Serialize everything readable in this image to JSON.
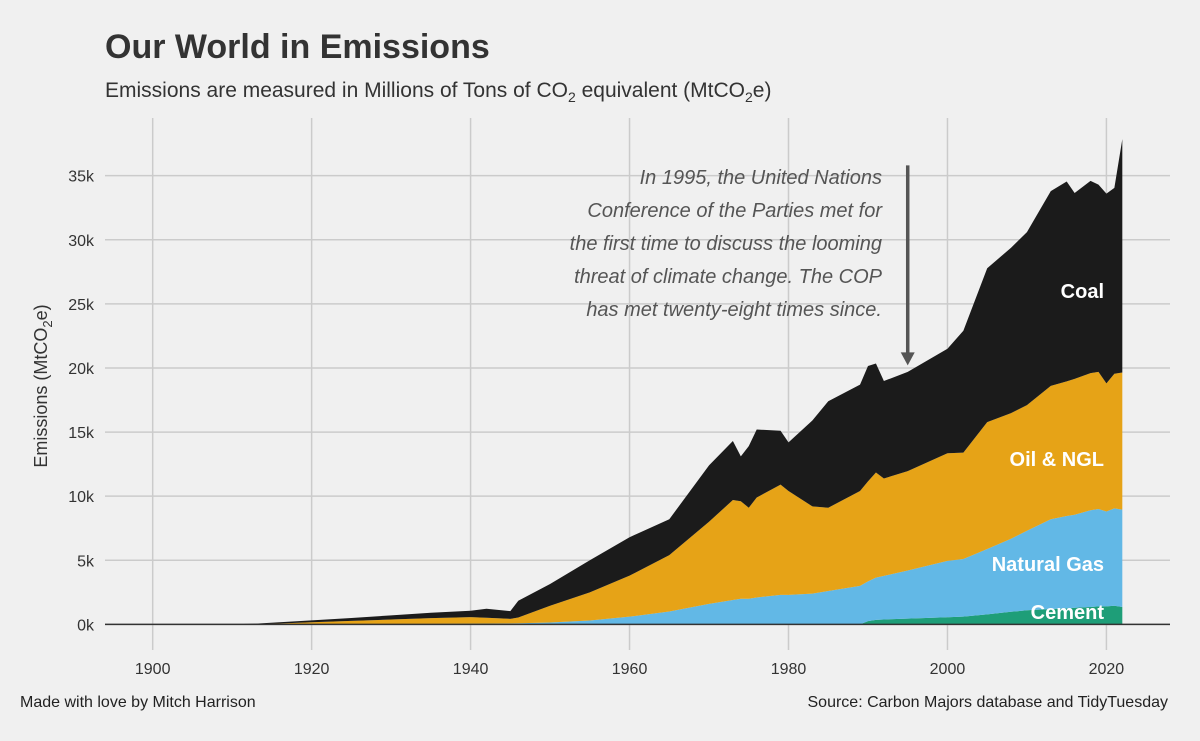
{
  "title": "Our World in Emissions",
  "subtitle": {
    "prefix": "Emissions are measured in Millions of Tons of CO",
    "sub1": "2",
    "middle": " equivalent (MtCO",
    "sub2": "2",
    "suffix": "e)"
  },
  "caption_left": "Made with love by Mitch Harrison",
  "caption_right": "Source: Carbon Majors database and TidyTuesday",
  "annotation": {
    "lines": [
      "In 1995, the United Nations",
      "Conference of the Parties met for",
      "the first time to discuss the looming",
      "threat of climate change. The COP",
      "has met twenty-eight times since."
    ],
    "arrow_year": 1995,
    "arrow_from": 35800,
    "arrow_to": 20200
  },
  "chart_data": {
    "type": "area",
    "stacked": true,
    "xlim": [
      1894,
      2028
    ],
    "ylim": [
      -2000,
      39500
    ],
    "x_ticks": [
      1900,
      1920,
      1940,
      1960,
      1980,
      2000,
      2020
    ],
    "x_tick_labels": [
      "1900",
      "1920",
      "1940",
      "1960",
      "1980",
      "2000",
      "2020"
    ],
    "y_ticks": [
      0,
      5000,
      10000,
      15000,
      20000,
      25000,
      30000,
      35000
    ],
    "y_tick_labels": [
      "0k",
      "5k",
      "10k",
      "15k",
      "20k",
      "25k",
      "30k",
      "35k"
    ],
    "xlabel": "",
    "ylabel": {
      "prefix": "Emissions (MtCO",
      "sub": "2",
      "suffix": "e)"
    },
    "grid": true,
    "x": [
      1900,
      1910,
      1913,
      1920,
      1925,
      1930,
      1935,
      1940,
      1942,
      1945,
      1946,
      1950,
      1955,
      1960,
      1965,
      1970,
      1973,
      1974,
      1975,
      1976,
      1979,
      1980,
      1983,
      1985,
      1989,
      1990,
      1991,
      1992,
      1995,
      2000,
      2002,
      2005,
      2008,
      2010,
      2013,
      2015,
      2016,
      2018,
      2019,
      2020,
      2021,
      2022
    ],
    "series": [
      {
        "name": "Cement",
        "label_value": 950,
        "values": [
          0,
          0,
          0,
          0,
          0,
          0,
          0,
          0,
          0,
          0,
          0,
          0,
          0,
          0,
          0,
          0,
          0,
          0,
          0,
          0,
          0,
          0,
          0,
          0,
          0,
          250,
          350,
          380,
          450,
          550,
          600,
          780,
          980,
          1100,
          1200,
          1250,
          1300,
          1350,
          1400,
          1400,
          1450,
          1350
        ]
      },
      {
        "name": "Natural Gas",
        "label_value": 4700,
        "values": [
          0,
          0,
          0,
          10,
          20,
          30,
          40,
          60,
          70,
          80,
          90,
          150,
          300,
          600,
          1000,
          1600,
          1900,
          2000,
          2000,
          2100,
          2300,
          2300,
          2400,
          2600,
          3000,
          3100,
          3300,
          3400,
          3750,
          4400,
          4500,
          5100,
          5700,
          6200,
          7000,
          7200,
          7250,
          7550,
          7600,
          7400,
          7600,
          7600
        ]
      },
      {
        "name": "Oil & NGL",
        "label_value": 12900,
        "values": [
          0,
          0,
          0,
          150,
          250,
          350,
          450,
          500,
          450,
          350,
          450,
          1300,
          2200,
          3200,
          4400,
          6400,
          7800,
          7600,
          7100,
          7800,
          8600,
          8100,
          6800,
          6500,
          7400,
          7800,
          8200,
          7600,
          7750,
          8400,
          8300,
          9900,
          9800,
          9800,
          10400,
          10500,
          10600,
          10700,
          10700,
          10000,
          10500,
          10700
        ]
      },
      {
        "name": "Coal",
        "label_value": 26000,
        "values": [
          0,
          0,
          60,
          150,
          230,
          320,
          420,
          500,
          700,
          600,
          1300,
          1700,
          2500,
          3000,
          2800,
          4400,
          4600,
          3500,
          4800,
          5300,
          4200,
          3800,
          6700,
          8300,
          8300,
          9000,
          8500,
          7600,
          7750,
          8150,
          9500,
          12000,
          12900,
          13500,
          15200,
          15600,
          14500,
          15000,
          14600,
          14800,
          14500,
          18200
        ]
      }
    ],
    "colors": {
      "Coal": "#1b1b1b",
      "Oil & NGL": "#e6a317",
      "Natural Gas": "#62b8e6",
      "Cement": "#1e9e78"
    }
  }
}
